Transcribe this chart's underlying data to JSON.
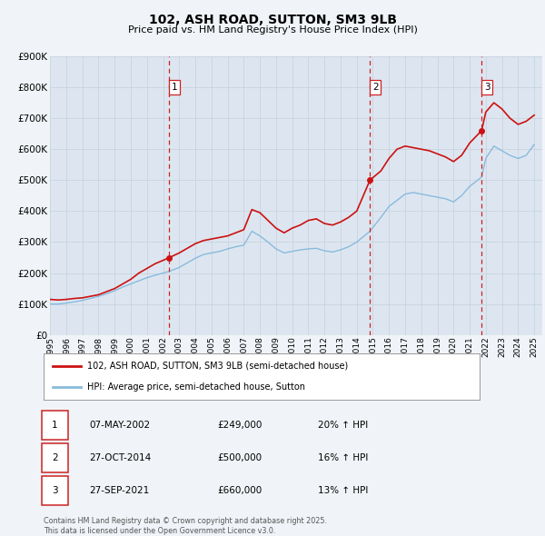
{
  "title": "102, ASH ROAD, SUTTON, SM3 9LB",
  "subtitle": "Price paid vs. HM Land Registry's House Price Index (HPI)",
  "background_color": "#f0f4f8",
  "plot_bg_color": "#dde6f0",
  "grid_color": "#c8d4e0",
  "ylim": [
    0,
    900000
  ],
  "yticks": [
    0,
    100000,
    200000,
    300000,
    400000,
    500000,
    600000,
    700000,
    800000,
    900000
  ],
  "sale_color": "#cc1111",
  "hpi_color": "#88bbdd",
  "sale_label": "102, ASH ROAD, SUTTON, SM3 9LB (semi-detached house)",
  "hpi_label": "HPI: Average price, semi-detached house, Sutton",
  "transactions": [
    {
      "num": 1,
      "date": "07-MAY-2002",
      "price": "£249,000",
      "hpi_pct": "20%",
      "year": 2002.35,
      "price_val": 249000
    },
    {
      "num": 2,
      "date": "27-OCT-2014",
      "price": "£500,000",
      "hpi_pct": "16%",
      "year": 2014.82,
      "price_val": 500000
    },
    {
      "num": 3,
      "date": "27-SEP-2021",
      "price": "£660,000",
      "hpi_pct": "13%",
      "year": 2021.74,
      "price_val": 660000
    }
  ],
  "vline_color": "#cc2222",
  "footnote": "Contains HM Land Registry data © Crown copyright and database right 2025.\nThis data is licensed under the Open Government Licence v3.0.",
  "xmin": 1995,
  "xmax": 2025.5,
  "sale_data_x": [
    1995.0,
    1995.5,
    1996.0,
    1996.5,
    1997.0,
    1997.5,
    1998.0,
    1998.5,
    1999.0,
    1999.5,
    2000.0,
    2000.5,
    2001.0,
    2001.5,
    2002.35,
    2003.0,
    2003.5,
    2004.0,
    2004.5,
    2005.0,
    2005.5,
    2006.0,
    2006.5,
    2007.0,
    2007.5,
    2008.0,
    2008.5,
    2009.0,
    2009.5,
    2010.0,
    2010.5,
    2011.0,
    2011.5,
    2012.0,
    2012.5,
    2013.0,
    2013.5,
    2014.0,
    2014.82,
    2015.5,
    2016.0,
    2016.5,
    2017.0,
    2017.5,
    2018.0,
    2018.5,
    2019.0,
    2019.5,
    2020.0,
    2020.5,
    2021.0,
    2021.74,
    2022.0,
    2022.5,
    2023.0,
    2023.5,
    2024.0,
    2024.5,
    2025.0
  ],
  "sale_data_y": [
    115000,
    113000,
    115000,
    118000,
    120000,
    125000,
    130000,
    140000,
    150000,
    165000,
    180000,
    200000,
    215000,
    230000,
    249000,
    265000,
    280000,
    295000,
    305000,
    310000,
    315000,
    320000,
    330000,
    340000,
    405000,
    395000,
    370000,
    345000,
    330000,
    345000,
    355000,
    370000,
    375000,
    360000,
    355000,
    365000,
    380000,
    400000,
    500000,
    530000,
    570000,
    600000,
    610000,
    605000,
    600000,
    595000,
    585000,
    575000,
    560000,
    580000,
    620000,
    660000,
    720000,
    750000,
    730000,
    700000,
    680000,
    690000,
    710000
  ],
  "hpi_data_x": [
    1995.0,
    1995.5,
    1996.0,
    1996.5,
    1997.0,
    1997.5,
    1998.0,
    1998.5,
    1999.0,
    1999.5,
    2000.0,
    2000.5,
    2001.0,
    2001.5,
    2002.35,
    2003.0,
    2003.5,
    2004.0,
    2004.5,
    2005.0,
    2005.5,
    2006.0,
    2006.5,
    2007.0,
    2007.5,
    2008.0,
    2008.5,
    2009.0,
    2009.5,
    2010.0,
    2010.5,
    2011.0,
    2011.5,
    2012.0,
    2012.5,
    2013.0,
    2013.5,
    2014.0,
    2014.82,
    2015.5,
    2016.0,
    2016.5,
    2017.0,
    2017.5,
    2018.0,
    2018.5,
    2019.0,
    2019.5,
    2020.0,
    2020.5,
    2021.0,
    2021.74,
    2022.0,
    2022.5,
    2023.0,
    2023.5,
    2024.0,
    2024.5,
    2025.0
  ],
  "hpi_data_y": [
    100000,
    100000,
    103000,
    107000,
    112000,
    118000,
    125000,
    133000,
    143000,
    155000,
    165000,
    175000,
    185000,
    193000,
    205000,
    218000,
    233000,
    248000,
    260000,
    265000,
    270000,
    278000,
    285000,
    290000,
    335000,
    320000,
    300000,
    278000,
    265000,
    270000,
    275000,
    278000,
    280000,
    272000,
    268000,
    275000,
    285000,
    300000,
    335000,
    380000,
    415000,
    435000,
    455000,
    460000,
    455000,
    450000,
    445000,
    440000,
    430000,
    450000,
    480000,
    510000,
    570000,
    610000,
    595000,
    580000,
    570000,
    580000,
    615000
  ]
}
